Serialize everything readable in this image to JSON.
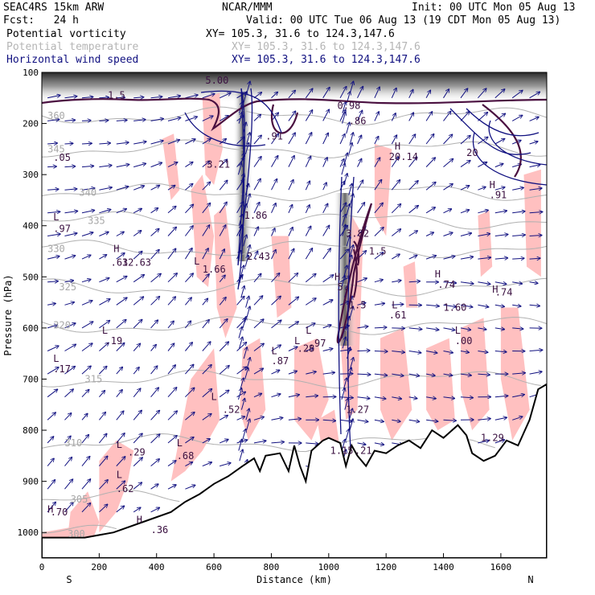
{
  "header": {
    "model": "SEAC4RS 15km ARW",
    "forecast": "Fcst:   24 h",
    "org": "NCAR/MMM",
    "init": "Init: 00 UTC Mon 05 Aug 13",
    "valid": "Valid: 00 UTC Tue 06 Aug 13 (19 CDT Mon 05 Aug 13)"
  },
  "fields": [
    {
      "name": "Potential vorticity",
      "xy": "XY= 105.3, 31.6 to 124.3,147.6",
      "color": "#000000"
    },
    {
      "name": "Potential temperature",
      "xy": "XY= 105.3, 31.6 to 124.3,147.6",
      "color": "#b5b5b5"
    },
    {
      "name": "Horizontal wind speed",
      "xy": "XY= 105.3, 31.6 to 124.3,147.6",
      "color": "#101080"
    }
  ],
  "chart_data": {
    "type": "cross-section",
    "xlabel": "Distance (km)",
    "ylabel": "Pressure (hPa)",
    "xlim": [
      0,
      1760
    ],
    "ylim": [
      1050,
      100
    ],
    "x_ticks": [
      0,
      200,
      400,
      600,
      800,
      1000,
      1200,
      1400,
      1600
    ],
    "y_ticks": [
      100,
      200,
      300,
      400,
      500,
      600,
      700,
      800,
      900,
      1000
    ],
    "end_labels": {
      "left": "S",
      "right": "N"
    },
    "theta_contours": [
      {
        "label": "360",
        "x": 20,
        "p": 185
      },
      {
        "label": "345",
        "x": 20,
        "p": 250
      },
      {
        "label": "340",
        "x": 130,
        "p": 335
      },
      {
        "label": "335",
        "x": 160,
        "p": 390
      },
      {
        "label": "330",
        "x": 20,
        "p": 445
      },
      {
        "label": "325",
        "x": 60,
        "p": 520
      },
      {
        "label": "320",
        "x": 40,
        "p": 595
      },
      {
        "label": "315",
        "x": 150,
        "p": 700
      },
      {
        "label": "310",
        "x": 80,
        "p": 825
      },
      {
        "label": "305",
        "x": 100,
        "p": 935
      },
      {
        "label": "300",
        "x": 90,
        "p": 1003
      }
    ],
    "pv_labels": [
      {
        "label": "1.5",
        "x": 230,
        "p": 145
      },
      {
        "label": "5.00",
        "x": 570,
        "p": 116
      },
      {
        "label": "0.98",
        "x": 1030,
        "p": 165
      },
      {
        "label": ".86",
        "x": 1070,
        "p": 195
      },
      {
        "label": "20.14",
        "x": 1210,
        "p": 265
      },
      {
        "label": "3.21",
        "x": 575,
        "p": 280
      },
      {
        "label": "1.86",
        "x": 705,
        "p": 380
      },
      {
        "label": "3.82",
        "x": 1060,
        "p": 415
      },
      {
        "label": "1.5",
        "x": 1140,
        "p": 450
      },
      {
        "label": "2.43",
        "x": 715,
        "p": 460
      },
      {
        "label": "5.",
        "x": 1030,
        "p": 520
      },
      {
        "label": "1.5",
        "x": 1070,
        "p": 555
      },
      {
        "label": ".74",
        "x": 1380,
        "p": 515
      },
      {
        "label": "1.60",
        "x": 1400,
        "p": 560
      },
      {
        "label": ".74",
        "x": 1580,
        "p": 530
      },
      {
        "label": ".61",
        "x": 1210,
        "p": 575
      },
      {
        "label": ".00",
        "x": 1440,
        "p": 625
      },
      {
        "label": ".87",
        "x": 800,
        "p": 665
      },
      {
        "label": ".28",
        "x": 890,
        "p": 640
      },
      {
        "label": ".97",
        "x": 930,
        "p": 630
      },
      {
        "label": "1.27",
        "x": 1060,
        "p": 760
      },
      {
        "label": "1.15",
        "x": 1005,
        "p": 840
      },
      {
        "label": ".21",
        "x": 1090,
        "p": 840
      },
      {
        "label": "1.29",
        "x": 1530,
        "p": 815
      },
      {
        "label": ".52",
        "x": 630,
        "p": 760
      },
      {
        "label": ".68",
        "x": 470,
        "p": 850
      },
      {
        "label": ".29",
        "x": 300,
        "p": 843
      },
      {
        "label": ".62",
        "x": 260,
        "p": 915
      },
      {
        "label": ".70",
        "x": 30,
        "p": 960
      },
      {
        "label": ".36",
        "x": 380,
        "p": 995
      },
      {
        "label": ".63",
        "x": 240,
        "p": 472
      },
      {
        "label": ".97",
        "x": 40,
        "p": 406
      },
      {
        "label": "1.66",
        "x": 560,
        "p": 485
      },
      {
        "label": ".05",
        "x": 40,
        "p": 267
      },
      {
        "label": ".19",
        "x": 220,
        "p": 625
      },
      {
        "label": ".17",
        "x": 40,
        "p": 680
      },
      {
        "label": ".91",
        "x": 780,
        "p": 225
      },
      {
        "label": ".91",
        "x": 1560,
        "p": 340
      },
      {
        "label": "20",
        "x": 1480,
        "p": 257
      },
      {
        "label": "12.63",
        "x": 280,
        "p": 472
      }
    ],
    "high_low_markers": [
      {
        "label": "H",
        "x": 20,
        "p": 955
      },
      {
        "label": "L",
        "x": 260,
        "p": 887
      },
      {
        "label": "L",
        "x": 260,
        "p": 828
      },
      {
        "label": "L",
        "x": 470,
        "p": 825
      },
      {
        "label": "H",
        "x": 330,
        "p": 975
      },
      {
        "label": "L",
        "x": 590,
        "p": 735
      },
      {
        "label": "L",
        "x": 800,
        "p": 645
      },
      {
        "label": "L",
        "x": 880,
        "p": 625
      },
      {
        "label": "L",
        "x": 920,
        "p": 605
      },
      {
        "label": "L",
        "x": 210,
        "p": 605
      },
      {
        "label": "L",
        "x": 40,
        "p": 660
      },
      {
        "label": "L",
        "x": 40,
        "p": 383
      },
      {
        "label": "H",
        "x": 250,
        "p": 445
      },
      {
        "label": "L",
        "x": 530,
        "p": 470
      },
      {
        "label": "H",
        "x": 1020,
        "p": 500
      },
      {
        "label": "H",
        "x": 1370,
        "p": 495
      },
      {
        "label": "H",
        "x": 1570,
        "p": 525
      },
      {
        "label": "L",
        "x": 1220,
        "p": 555
      },
      {
        "label": "L",
        "x": 1440,
        "p": 605
      },
      {
        "label": "H",
        "x": 1230,
        "p": 245
      },
      {
        "label": "H",
        "x": 1560,
        "p": 320
      }
    ],
    "terrain_hpa": [
      [
        0,
        1010
      ],
      [
        150,
        1010
      ],
      [
        250,
        1000
      ],
      [
        350,
        980
      ],
      [
        450,
        960
      ],
      [
        500,
        940
      ],
      [
        550,
        925
      ],
      [
        600,
        905
      ],
      [
        650,
        890
      ],
      [
        700,
        870
      ],
      [
        740,
        855
      ],
      [
        760,
        880
      ],
      [
        780,
        850
      ],
      [
        830,
        845
      ],
      [
        860,
        880
      ],
      [
        880,
        830
      ],
      [
        900,
        870
      ],
      [
        920,
        900
      ],
      [
        940,
        840
      ],
      [
        980,
        820
      ],
      [
        1000,
        815
      ],
      [
        1040,
        825
      ],
      [
        1060,
        870
      ],
      [
        1080,
        830
      ],
      [
        1100,
        850
      ],
      [
        1130,
        870
      ],
      [
        1160,
        840
      ],
      [
        1200,
        845
      ],
      [
        1240,
        830
      ],
      [
        1280,
        820
      ],
      [
        1320,
        835
      ],
      [
        1360,
        800
      ],
      [
        1400,
        815
      ],
      [
        1450,
        790
      ],
      [
        1480,
        810
      ],
      [
        1500,
        845
      ],
      [
        1540,
        860
      ],
      [
        1580,
        850
      ],
      [
        1620,
        820
      ],
      [
        1660,
        830
      ],
      [
        1700,
        780
      ],
      [
        1730,
        720
      ],
      [
        1760,
        710
      ]
    ]
  }
}
